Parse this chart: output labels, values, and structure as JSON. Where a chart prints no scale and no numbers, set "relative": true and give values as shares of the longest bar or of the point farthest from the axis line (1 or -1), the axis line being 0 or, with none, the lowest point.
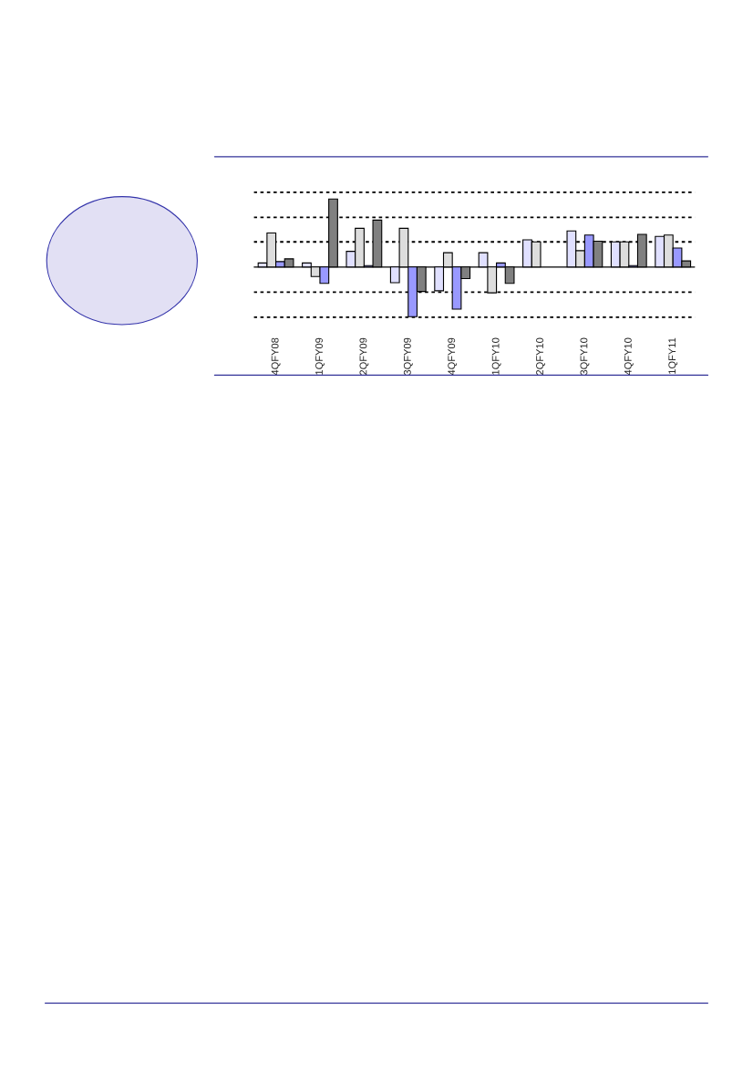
{
  "chart_data": {
    "type": "bar",
    "relative": true,
    "categories": [
      "4QFY08",
      "1QFY09",
      "2QFY09",
      "3QFY09",
      "4QFY09",
      "1QFY10",
      "2QFY10",
      "3QFY10",
      "4QFY10",
      "1QFY11"
    ],
    "series": [
      {
        "color": "#e0e0ff",
        "values": [
          0.06,
          0.06,
          0.23,
          -0.23,
          -0.35,
          0.21,
          0.4,
          0.53,
          0.37,
          0.45
        ]
      },
      {
        "color": "#dddddd",
        "values": [
          0.5,
          -0.14,
          0.57,
          0.57,
          0.21,
          -0.38,
          0.37,
          0.24,
          0.37,
          0.47
        ]
      },
      {
        "color": "#9999ff",
        "values": [
          0.08,
          -0.24,
          0.02,
          -0.73,
          -0.62,
          0.06,
          null,
          0.47,
          0.02,
          0.28
        ]
      },
      {
        "color": "#808080",
        "values": [
          0.12,
          1.0,
          0.69,
          -0.36,
          -0.17,
          -0.24,
          null,
          0.38,
          0.48,
          0.09
        ]
      }
    ],
    "ref_lines": [
      {
        "axis": "y",
        "value": 1.1,
        "color": "#000000",
        "line_style": "dotted"
      },
      {
        "axis": "y",
        "value": 0.73,
        "color": "#000000",
        "line_style": "dotted"
      },
      {
        "axis": "y",
        "value": 0.37,
        "color": "#000000",
        "line_style": "dotted"
      },
      {
        "axis": "y",
        "value": -0.37,
        "color": "#000000",
        "line_style": "dotted"
      },
      {
        "axis": "y",
        "value": -0.74,
        "color": "#000000",
        "line_style": "dotted"
      }
    ]
  }
}
